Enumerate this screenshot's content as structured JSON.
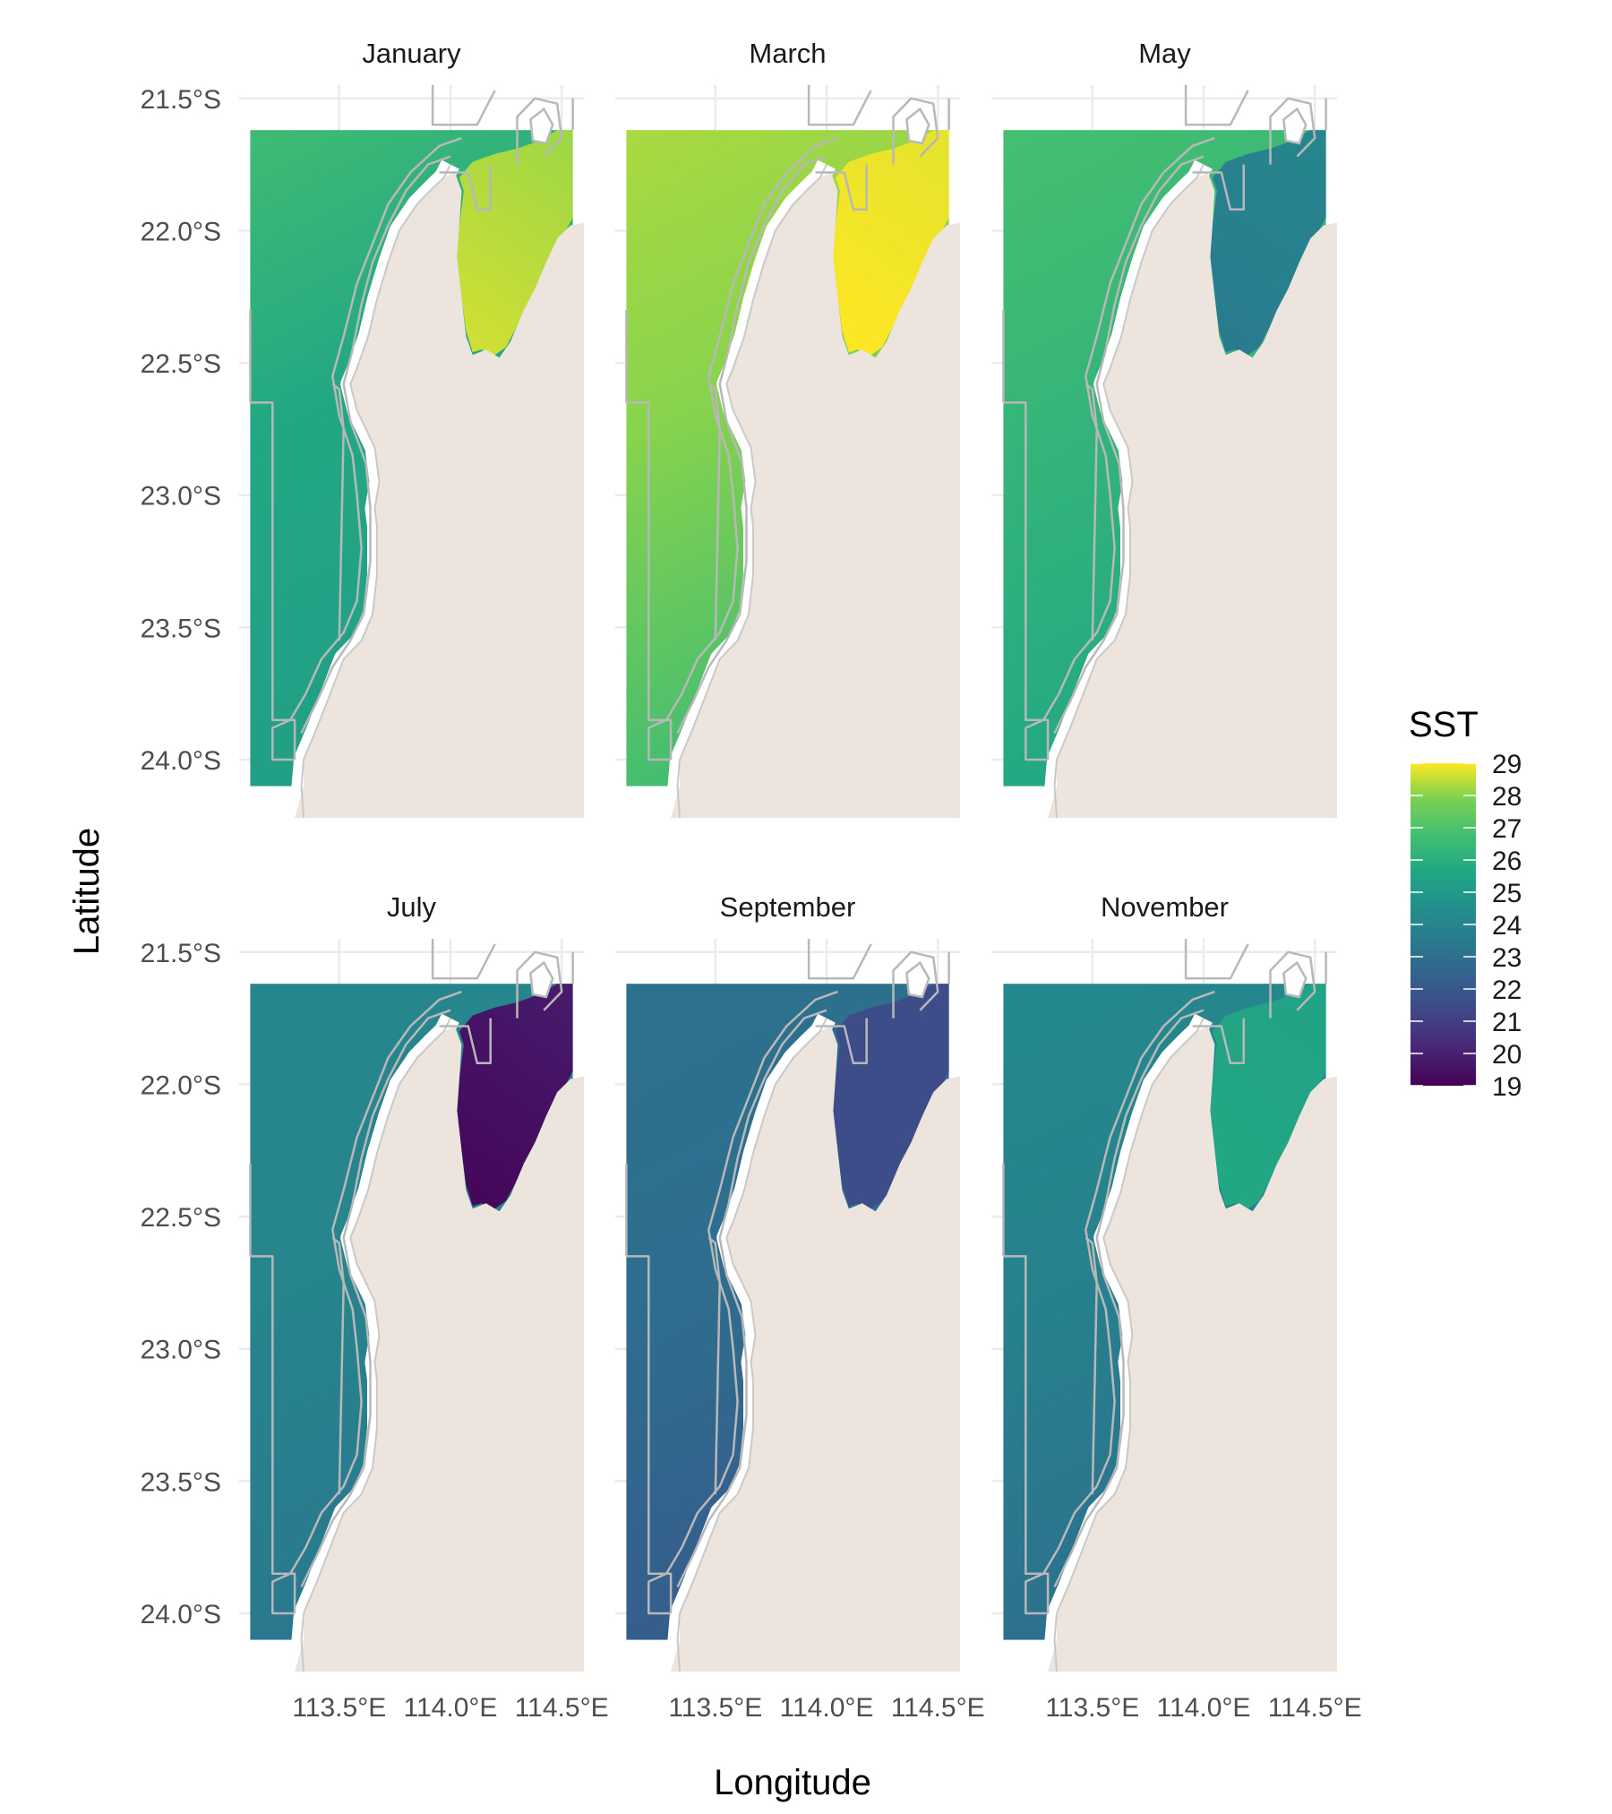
{
  "chart_data": {
    "type": "heatmap",
    "title": "",
    "xlabel": "Longitude",
    "ylabel": "Latitude",
    "facets": [
      {
        "label": "January",
        "offshore_sst": 25.6,
        "northwest_sst": 26.6,
        "south_sst": 25.2,
        "gulf_sst": 28.2,
        "gulf_south_sst": 28.6
      },
      {
        "label": "March",
        "offshore_sst": 28.0,
        "northwest_sst": 28.3,
        "south_sst": 26.6,
        "gulf_sst": 28.8,
        "gulf_south_sst": 29.0
      },
      {
        "label": "May",
        "offshore_sst": 26.3,
        "northwest_sst": 26.8,
        "south_sst": 25.6,
        "gulf_sst": 24.0,
        "gulf_south_sst": 23.6
      },
      {
        "label": "July",
        "offshore_sst": 24.0,
        "northwest_sst": 24.0,
        "south_sst": 23.4,
        "gulf_sst": 19.8,
        "gulf_south_sst": 19.2
      },
      {
        "label": "September",
        "offshore_sst": 23.0,
        "northwest_sst": 23.2,
        "south_sst": 22.2,
        "gulf_sst": 21.6,
        "gulf_south_sst": 21.6
      },
      {
        "label": "November",
        "offshore_sst": 23.9,
        "northwest_sst": 24.2,
        "south_sst": 23.1,
        "gulf_sst": 25.4,
        "gulf_south_sst": 25.6
      }
    ],
    "x_ticks": [
      {
        "value": 113.5,
        "label": "113.5°E"
      },
      {
        "value": 114.0,
        "label": "114.0°E"
      },
      {
        "value": 114.5,
        "label": "114.5°E"
      }
    ],
    "y_ticks": [
      {
        "value": -21.5,
        "label": "21.5°S"
      },
      {
        "value": -22.0,
        "label": "22.0°S"
      },
      {
        "value": -22.5,
        "label": "22.5°S"
      },
      {
        "value": -23.0,
        "label": "23.0°S"
      },
      {
        "value": -23.5,
        "label": "23.5°S"
      },
      {
        "value": -24.0,
        "label": "24.0°S"
      }
    ],
    "xlim": [
      113.05,
      114.6
    ],
    "ylim": [
      -24.22,
      -21.45
    ],
    "grid": true,
    "legend": {
      "title": "SST",
      "position": "right",
      "min": 19,
      "max": 29,
      "ticks": [
        29,
        28,
        27,
        26,
        25,
        24,
        23,
        22,
        21,
        20,
        19
      ],
      "colormap": "viridis"
    },
    "colors": {
      "land": "#ede4de",
      "boundary": "#b8b8b8",
      "grid": "#ebebeb"
    }
  }
}
